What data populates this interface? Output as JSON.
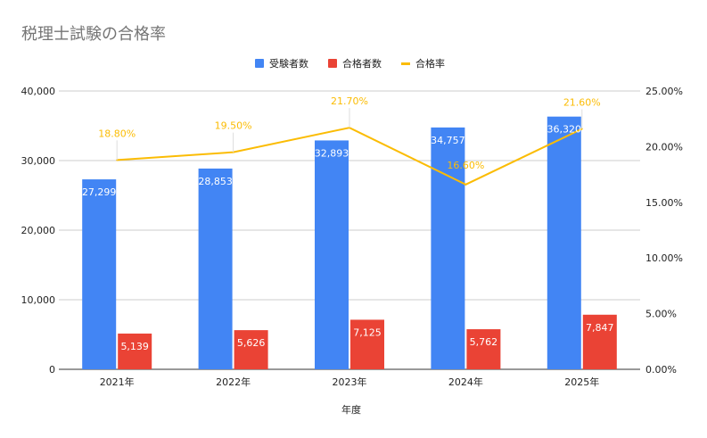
{
  "chart_data": {
    "type": "bar+line",
    "title": "税理士試験の合格率",
    "xlabel": "年度",
    "categories": [
      "2021年",
      "2022年",
      "2023年",
      "2024年",
      "2025年"
    ],
    "series": [
      {
        "name": "受験者数",
        "type": "bar",
        "axis": "left",
        "color": "#4285f4",
        "values": [
          27299,
          28853,
          32893,
          34757,
          36320
        ],
        "labels": [
          "27,299",
          "28,853",
          "32,893",
          "34,757",
          "36,320"
        ]
      },
      {
        "name": "合格者数",
        "type": "bar",
        "axis": "left",
        "color": "#ea4335",
        "values": [
          5139,
          5626,
          7125,
          5762,
          7847
        ],
        "labels": [
          "5,139",
          "5,626",
          "7,125",
          "5,762",
          "7,847"
        ]
      },
      {
        "name": "合格率",
        "type": "line",
        "axis": "right",
        "color": "#fbbc04",
        "values": [
          18.8,
          19.5,
          21.7,
          16.6,
          21.6
        ],
        "labels": [
          "18.80%",
          "19.50%",
          "21.70%",
          "16.60%",
          "21.60%"
        ]
      }
    ],
    "y_left": {
      "range": [
        0,
        40000
      ],
      "ticks": [
        0,
        10000,
        20000,
        30000,
        40000
      ],
      "tick_labels": [
        "0",
        "10,000",
        "20,000",
        "30,000",
        "40,000"
      ]
    },
    "y_right": {
      "range": [
        0,
        25
      ],
      "ticks": [
        0,
        5,
        10,
        15,
        20,
        25
      ],
      "tick_labels": [
        "0.00%",
        "5.00%",
        "10.00%",
        "15.00%",
        "20.00%",
        "25.00%"
      ]
    },
    "grid": true,
    "legend": "top"
  }
}
